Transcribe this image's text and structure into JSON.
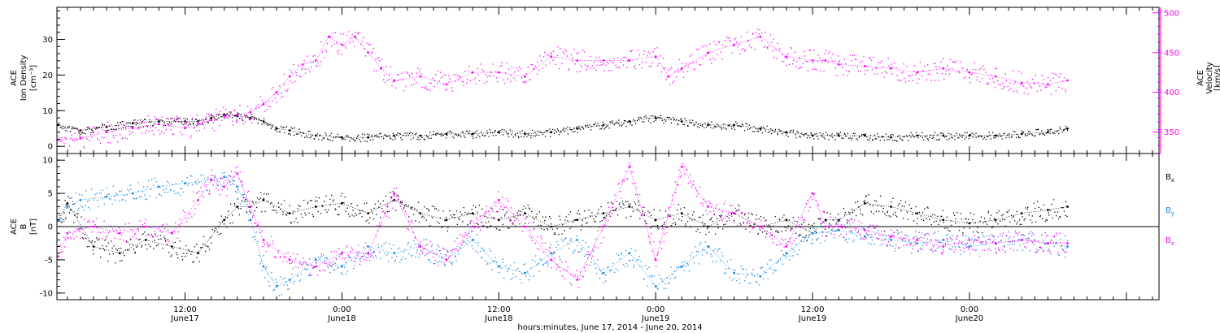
{
  "colors": {
    "black": "#000000",
    "magenta": "#ff00ff",
    "blue": "#1e88e5"
  },
  "top_panel": {
    "ylabel_lines": [
      "ACE",
      "Ion Density",
      "[cm⁻³]"
    ],
    "ylabel_right_lines": [
      "ACE",
      "Velocity",
      "[km/s]"
    ]
  },
  "bottom_panel": {
    "ylabel_lines": [
      "ACE",
      "B",
      "[nT]"
    ],
    "legend": [
      {
        "text": "B",
        "sub": "x",
        "color": "#000000"
      },
      {
        "text": "B",
        "sub": "y",
        "color": "#1e88e5"
      },
      {
        "text": "B",
        "sub": "z",
        "color": "#ff00ff"
      }
    ]
  },
  "x_ticks": [
    {
      "hour": 12,
      "line1": "12:00",
      "line2": "June17"
    },
    {
      "hour": 24,
      "line1": "0:00",
      "line2": "June18"
    },
    {
      "hour": 36,
      "line1": "12:00",
      "line2": "June18"
    },
    {
      "hour": 48,
      "line1": "0:00",
      "line2": "June19"
    },
    {
      "hour": 60,
      "line1": "12:00",
      "line2": "June19"
    },
    {
      "hour": 72,
      "line1": "0:00",
      "line2": "June20"
    }
  ],
  "x_title": "hours:minutes, June 17, 2014 - June 20, 2014",
  "chart_data": [
    {
      "type": "scatter",
      "panel": "top",
      "xlabel": "hours:minutes, June 17, 2014 - June 20, 2014",
      "xlim": [
        2.2,
        86.5
      ],
      "x_unit": "hours since 2014-06-17 00:00",
      "ylabel": "ACE Ion Density [cm⁻³]",
      "ylim": [
        -2,
        39
      ],
      "yticks": [
        0,
        10,
        20,
        30
      ],
      "ylabel_right": "ACE Velocity [km/s]",
      "ylim_right": [
        323,
        507
      ],
      "yticks_right": [
        350,
        400,
        450,
        500
      ],
      "series": [
        {
          "name": "",
          "axis": "left",
          "color": "#000000",
          "x": [
            2.3,
            4,
            6,
            8,
            10,
            12,
            13,
            14,
            15,
            16,
            17,
            18,
            19,
            20,
            22,
            24,
            26,
            28,
            30,
            32,
            34,
            36,
            38,
            40,
            42,
            44,
            46,
            48,
            50,
            52,
            54,
            56,
            58,
            60,
            62,
            64,
            66,
            68,
            70,
            72,
            74,
            76,
            78,
            79.5
          ],
          "y": [
            6,
            4.5,
            5.5,
            6.5,
            7,
            7,
            7,
            8,
            9,
            8.5,
            8,
            7,
            5,
            4.5,
            3,
            2.5,
            2.5,
            3,
            3,
            3.5,
            3.5,
            4,
            3.5,
            4,
            5,
            6,
            7,
            8,
            7,
            6,
            6,
            5,
            4,
            3,
            3,
            3,
            2.5,
            3,
            3,
            3,
            3,
            3.5,
            4,
            5
          ]
        },
        {
          "name": "",
          "axis": "right",
          "color": "#ff00ff",
          "x": [
            2.3,
            4,
            6,
            8,
            10,
            12,
            13,
            14,
            15,
            16,
            17,
            18,
            19,
            20,
            21,
            22,
            23,
            24,
            25,
            26,
            27,
            28,
            30,
            32,
            34,
            36,
            38,
            40,
            42,
            44,
            46,
            48,
            49,
            50,
            52,
            54,
            56,
            58,
            60,
            61,
            62,
            64,
            66,
            68,
            70,
            72,
            74,
            76,
            78,
            79.5
          ],
          "y": [
            340,
            342,
            350,
            355,
            360,
            355,
            360,
            365,
            370,
            372,
            375,
            385,
            400,
            420,
            435,
            440,
            470,
            460,
            470,
            450,
            430,
            415,
            420,
            410,
            425,
            425,
            420,
            445,
            440,
            440,
            440,
            445,
            420,
            430,
            450,
            460,
            470,
            445,
            440,
            440,
            435,
            433,
            430,
            425,
            430,
            425,
            420,
            412,
            410,
            415
          ]
        }
      ]
    },
    {
      "type": "scatter",
      "panel": "bottom",
      "xlim": [
        2.2,
        86.5
      ],
      "x_unit": "hours since 2014-06-17 00:00",
      "ylabel": "ACE B [nT]",
      "ylim": [
        -11,
        11
      ],
      "yticks": [
        -10,
        -5,
        0,
        5,
        10
      ],
      "zero_line": true,
      "series": [
        {
          "name": "Bx",
          "color": "#000000",
          "x": [
            2.3,
            3,
            5,
            7,
            9,
            11,
            13,
            15,
            16,
            17,
            18,
            20,
            22,
            24,
            26,
            28,
            30,
            32,
            34,
            36,
            38,
            40,
            42,
            44,
            46,
            48,
            50,
            52,
            54,
            56,
            58,
            60,
            61,
            62,
            64,
            66,
            68,
            70,
            72,
            74,
            76,
            78,
            79.5
          ],
          "y": [
            1,
            3.5,
            -3,
            -4,
            -2,
            -3,
            -4,
            1,
            3,
            3,
            4,
            2,
            3,
            3.5,
            2,
            4,
            2,
            1,
            2,
            1,
            2,
            0,
            1,
            2,
            3,
            1,
            2,
            0,
            2,
            0,
            1,
            -1,
            1,
            1,
            3.5,
            3,
            2,
            1,
            0.5,
            1,
            2,
            2.5,
            3
          ]
        },
        {
          "name": "By",
          "color": "#1e88e5",
          "x": [
            2.3,
            3,
            4,
            6,
            8,
            10,
            12,
            14,
            15,
            16,
            17,
            18,
            19,
            20,
            22,
            24,
            26,
            28,
            30,
            32,
            34,
            36,
            38,
            40,
            42,
            44,
            46,
            48,
            50,
            52,
            54,
            56,
            58,
            60,
            62,
            64,
            66,
            68,
            70,
            72,
            74,
            76,
            78,
            79.5
          ],
          "y": [
            1,
            3,
            4,
            4.5,
            5,
            6,
            6.5,
            7,
            7.5,
            6,
            1,
            -6,
            -9,
            -8,
            -5,
            -6,
            -3,
            -4,
            -3,
            -5,
            -2,
            -6,
            -7,
            -4,
            -2,
            -7,
            -4,
            -9,
            -6,
            -3,
            -7,
            -7.5,
            -4,
            -1,
            -0.5,
            -1.5,
            -2,
            -2.5,
            -2,
            -3,
            -2.5,
            -2,
            -2.5,
            -3
          ]
        },
        {
          "name": "Bz",
          "color": "#ff00ff",
          "x": [
            2.3,
            3,
            5,
            7,
            9,
            11,
            13,
            14,
            15,
            16,
            17,
            18,
            20,
            22,
            24,
            26,
            28,
            30,
            32,
            34,
            36,
            38,
            40,
            42,
            44,
            46,
            48,
            50,
            52,
            54,
            56,
            58,
            60,
            61,
            62,
            64,
            66,
            68,
            70,
            72,
            74,
            76,
            78,
            79.5
          ],
          "y": [
            -4.5,
            -1,
            0,
            -1,
            0,
            -1,
            4,
            7,
            6,
            8,
            3,
            -2,
            -5,
            -6,
            -4,
            -4,
            5,
            -3,
            -5,
            0,
            4,
            0,
            -5,
            -8,
            0,
            9,
            -5,
            9,
            3,
            2,
            0,
            -3,
            5,
            0,
            0,
            -0.5,
            -1.5,
            -2,
            -3,
            -2,
            -2.5,
            -2,
            -2.5,
            -2.5
          ]
        }
      ]
    }
  ]
}
